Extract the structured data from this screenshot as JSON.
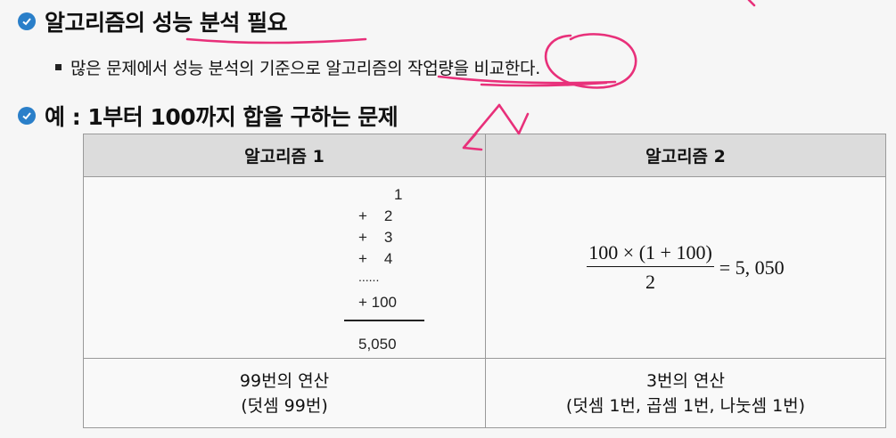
{
  "heading1": {
    "text": "알고리즘의 성능 분석 필요"
  },
  "sub1": {
    "text": "많은 문제에서 성능 분석의 기준으로 알고리즘의 작업량을 비교한다."
  },
  "heading2": {
    "text": "예 : 1부터 100까지 합을 구하는 문제"
  },
  "table": {
    "headers": [
      "알고리즘 1",
      "알고리즘 2"
    ],
    "algo1": {
      "lines": [
        "1",
        "+    2",
        "+    3",
        "+    4",
        "......",
        "+ 100"
      ],
      "result": "5,050"
    },
    "algo2": {
      "numerator": "100 × (1 + 100)",
      "denominator": "2",
      "result": "= 5, 050"
    },
    "ops": [
      {
        "line1": "99번의 연산",
        "line2": "(덧셈 99번)"
      },
      {
        "line1": "3번의 연산",
        "line2": "(덧셈 1번, 곱셈 1번, 나눗셈 1번)"
      }
    ]
  },
  "colors": {
    "bullet": "#2a7fc9",
    "annotation": "#e8307a",
    "header_bg": "#dcdcdc"
  }
}
